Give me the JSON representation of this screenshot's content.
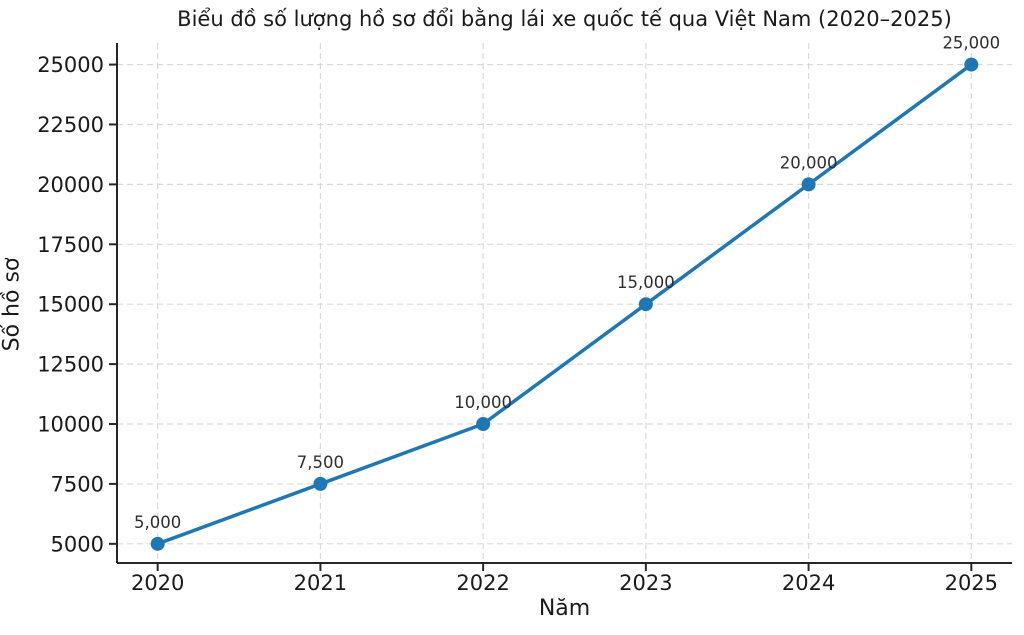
{
  "chart_data": {
    "type": "line",
    "title": "Biểu đồ số lượng hồ sơ đổi bằng lái xe quốc tế qua Việt Nam (2020–2025)",
    "xlabel": "Năm",
    "ylabel": "Số hồ sơ",
    "x": [
      2020,
      2021,
      2022,
      2023,
      2024,
      2025
    ],
    "xtick_labels": [
      "2020",
      "2021",
      "2022",
      "2023",
      "2024",
      "2025"
    ],
    "yticks": [
      5000,
      7500,
      10000,
      12500,
      15000,
      17500,
      20000,
      22500,
      25000
    ],
    "ytick_labels": [
      "5000",
      "7500",
      "10000",
      "12500",
      "15000",
      "17500",
      "20000",
      "22500",
      "25000"
    ],
    "series": [
      {
        "name": "Số hồ sơ",
        "values": [
          5000,
          7500,
          10000,
          15000,
          20000,
          25000
        ],
        "point_labels": [
          "5,000",
          "7,500",
          "10,000",
          "15,000",
          "20,000",
          "25,000"
        ],
        "color": "#1f77b4"
      }
    ],
    "xlim": [
      2019.75,
      2025.25
    ],
    "ylim": [
      4200,
      25900
    ],
    "grid": true,
    "grid_style": "dashed",
    "legend": false
  },
  "colors": {
    "line": "#1f77b4",
    "marker": "#1f77b4",
    "grid": "#d9d9d9",
    "spine": "#262626",
    "tick": "#262626",
    "text": "#1a1a1a",
    "background": "#ffffff"
  }
}
